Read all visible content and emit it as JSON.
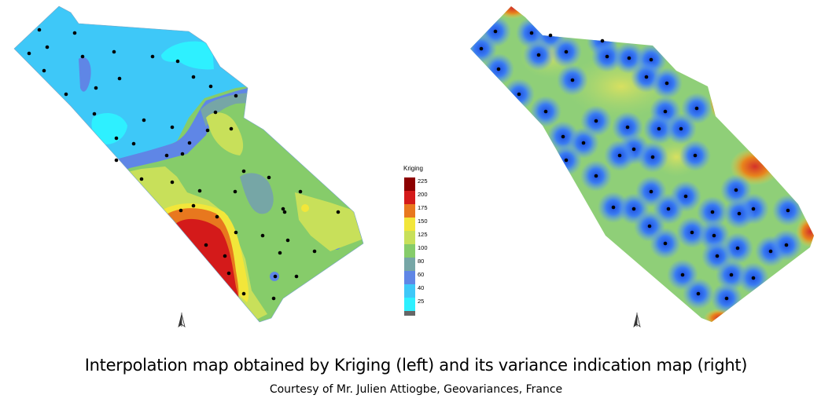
{
  "figure": {
    "caption": "Interpolation map obtained by Kriging (left) and its variance indication map (right)",
    "credit": "Courtesy of Mr. Julien Attiogbe, Geovariances, France"
  },
  "legend": {
    "title": "Kriging",
    "entries": [
      {
        "label": "225",
        "color": "#8c0000"
      },
      {
        "label": "200",
        "color": "#d41a1a"
      },
      {
        "label": "175",
        "color": "#e8781e"
      },
      {
        "label": "150",
        "color": "#f2e63a"
      },
      {
        "label": "125",
        "color": "#c8e05a"
      },
      {
        "label": "100",
        "color": "#86cc6a"
      },
      {
        "label": "80",
        "color": "#76a6a6"
      },
      {
        "label": "60",
        "color": "#5f86e6"
      },
      {
        "label": "40",
        "color": "#3ec8f8"
      },
      {
        "label": "25",
        "color": "#2ef0ff"
      }
    ]
  },
  "maps": {
    "kriging": {
      "base_color": "#86cc6a",
      "zone_colors": {
        "light_blue": "#3ec8f8",
        "cyan": "#2ef0ff",
        "blue": "#5f86e6",
        "teal": "#76a6a6",
        "green": "#86cc6a",
        "yellow_green": "#c8e05a",
        "yellow": "#f2e63a",
        "orange": "#e8781e",
        "red": "#d41a1a"
      }
    },
    "variance": {
      "low_color": "#2f6cf0",
      "mid_color": "#8fcf78",
      "high_color": "#e07a1c",
      "edge_color": "#d4322a"
    },
    "sample_point_color": "#000000",
    "north_arrow_icon": "north-arrow-icon"
  }
}
